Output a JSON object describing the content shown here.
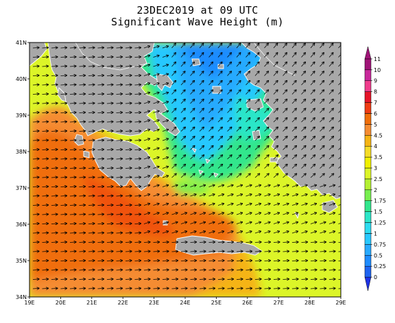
{
  "title": "23DEC2019 at 09 UTC",
  "subtitle": "Significant Wave Height (m)",
  "map": {
    "lat_labels": [
      "41N",
      "40N",
      "39N",
      "38N",
      "37N",
      "36N",
      "35N",
      "34N"
    ],
    "lon_labels": [
      "19E",
      "20E",
      "21E",
      "22E",
      "23E",
      "24E",
      "25E",
      "26E",
      "27E",
      "28E",
      "29E"
    ],
    "land_color": "#a8a8a8",
    "arrow_color": "#000000",
    "coast_color": "#ffffff"
  },
  "colorbar": {
    "units": "m",
    "labels": [
      "0",
      "0.25",
      "0.5",
      "0.75",
      "1",
      "1.25",
      "1.5",
      "1.75",
      "2",
      "2.5",
      "3",
      "3.5",
      "4",
      "4.5",
      "5",
      "6",
      "7",
      "8",
      "9",
      "10",
      "11"
    ],
    "colors": [
      "#1e32e6",
      "#1e64f0",
      "#1e8cff",
      "#28aaff",
      "#28c8ff",
      "#2ddcf0",
      "#2ce6c8",
      "#32e68c",
      "#78ef50",
      "#b4f032",
      "#dcf528",
      "#f0f000",
      "#f5dc28",
      "#f5b414",
      "#f58c32",
      "#f06e0a",
      "#f03c14",
      "#e61428",
      "#f03c8c",
      "#c8289b",
      "#a01478"
    ]
  }
}
